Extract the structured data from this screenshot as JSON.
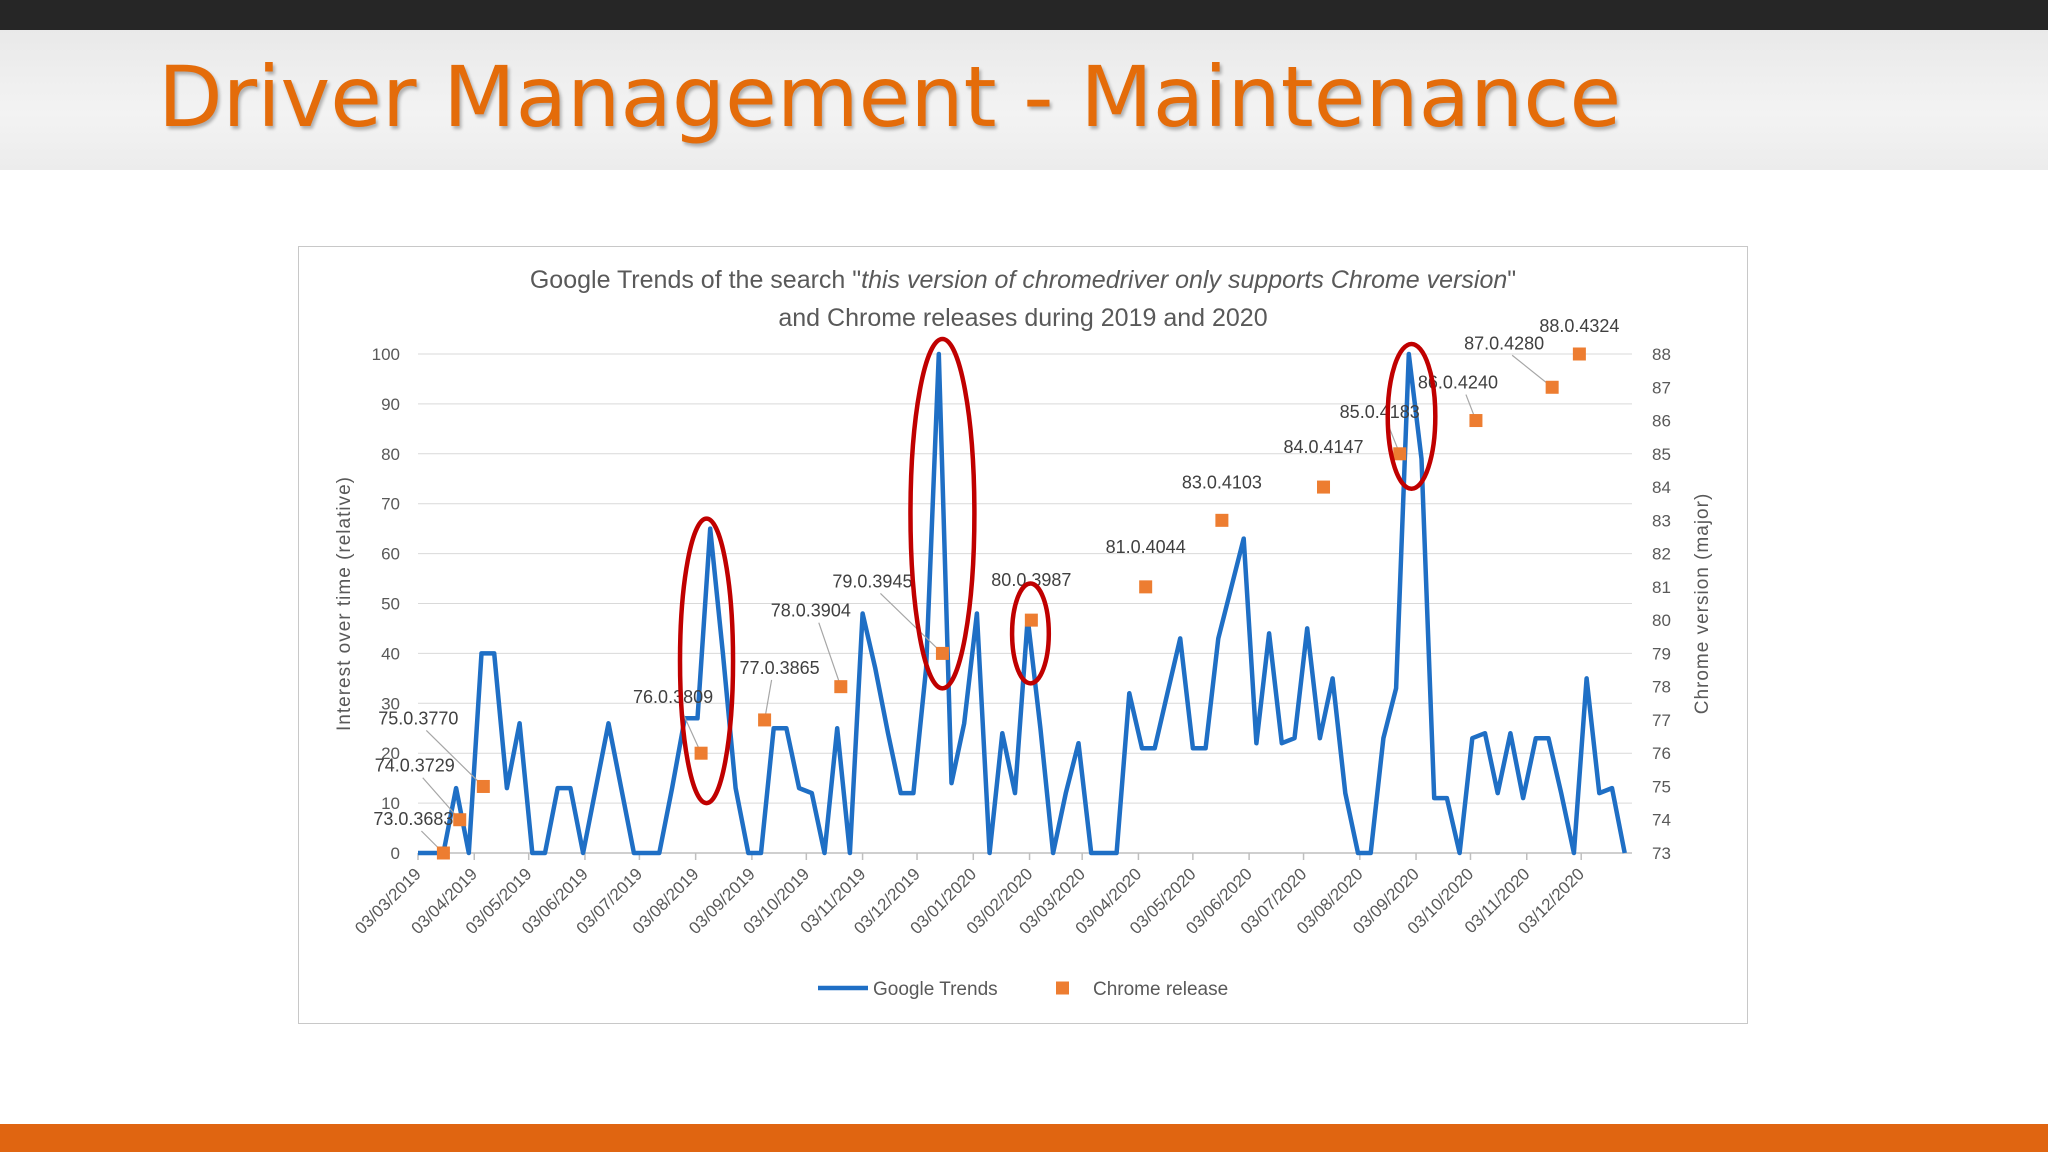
{
  "slide": {
    "title": "Driver Management - Maintenance"
  },
  "colors": {
    "accent": "#e46c0a",
    "trends": "#1f6fc5",
    "releases": "#ed7d31",
    "highlight": "#c00000"
  },
  "chart_data": {
    "type": "line",
    "title": "Google Trends of the search \"this version of chromedriver only supports Chrome version\" and Chrome releases during 2019 and 2020",
    "title_lines": [
      [
        {
          "text": "Google Trends of the search \"",
          "italic": false
        },
        {
          "text": "this version of chromedriver only supports Chrome version",
          "italic": true
        },
        {
          "text": "\"",
          "italic": false
        }
      ],
      [
        {
          "text": "and Chrome releases during 2019 and 2020",
          "italic": false
        }
      ]
    ],
    "ylabel": "Interest over time (relative)",
    "y2label": "Chrome version (major)",
    "ylim": [
      0,
      100
    ],
    "yticks": [
      0,
      10,
      20,
      30,
      40,
      50,
      60,
      70,
      80,
      90,
      100
    ],
    "y2lim": [
      73,
      88
    ],
    "y2ticks": [
      73,
      74,
      75,
      76,
      77,
      78,
      79,
      80,
      81,
      82,
      83,
      84,
      85,
      86,
      87,
      88
    ],
    "xlim": [
      "2019-03-03",
      "2020-12-31"
    ],
    "xticks": [
      "03/03/2019",
      "03/04/2019",
      "03/05/2019",
      "03/06/2019",
      "03/07/2019",
      "03/08/2019",
      "03/09/2019",
      "03/10/2019",
      "03/11/2019",
      "03/12/2019",
      "03/01/2020",
      "03/02/2020",
      "03/03/2020",
      "03/04/2020",
      "03/05/2020",
      "03/06/2020",
      "03/07/2020",
      "03/08/2020",
      "03/09/2020",
      "03/10/2020",
      "03/11/2020",
      "03/12/2020"
    ],
    "grid": true,
    "legend": "bottom",
    "series": [
      {
        "name": "Google Trends",
        "axis": "left",
        "points": [
          [
            "2019-03-03",
            0
          ],
          [
            "2019-03-10",
            0
          ],
          [
            "2019-03-17",
            0
          ],
          [
            "2019-03-24",
            13
          ],
          [
            "2019-03-31",
            0
          ],
          [
            "2019-04-07",
            40
          ],
          [
            "2019-04-14",
            40
          ],
          [
            "2019-04-21",
            13
          ],
          [
            "2019-04-28",
            26
          ],
          [
            "2019-05-05",
            0
          ],
          [
            "2019-05-12",
            0
          ],
          [
            "2019-05-19",
            13
          ],
          [
            "2019-05-26",
            13
          ],
          [
            "2019-06-02",
            0
          ],
          [
            "2019-06-09",
            13
          ],
          [
            "2019-06-16",
            26
          ],
          [
            "2019-06-23",
            13
          ],
          [
            "2019-06-30",
            0
          ],
          [
            "2019-07-07",
            0
          ],
          [
            "2019-07-14",
            0
          ],
          [
            "2019-07-21",
            13
          ],
          [
            "2019-07-28",
            27
          ],
          [
            "2019-08-04",
            27
          ],
          [
            "2019-08-11",
            65
          ],
          [
            "2019-08-18",
            40
          ],
          [
            "2019-08-25",
            13
          ],
          [
            "2019-09-01",
            0
          ],
          [
            "2019-09-08",
            0
          ],
          [
            "2019-09-15",
            25
          ],
          [
            "2019-09-22",
            25
          ],
          [
            "2019-09-29",
            13
          ],
          [
            "2019-10-06",
            12
          ],
          [
            "2019-10-13",
            0
          ],
          [
            "2019-10-20",
            25
          ],
          [
            "2019-10-27",
            0
          ],
          [
            "2019-11-03",
            48
          ],
          [
            "2019-11-10",
            37
          ],
          [
            "2019-11-17",
            24
          ],
          [
            "2019-11-24",
            12
          ],
          [
            "2019-12-01",
            12
          ],
          [
            "2019-12-08",
            37
          ],
          [
            "2019-12-15",
            100
          ],
          [
            "2019-12-22",
            14
          ],
          [
            "2019-12-29",
            26
          ],
          [
            "2020-01-05",
            48
          ],
          [
            "2020-01-12",
            0
          ],
          [
            "2020-01-19",
            24
          ],
          [
            "2020-01-26",
            12
          ],
          [
            "2020-02-02",
            47
          ],
          [
            "2020-02-09",
            25
          ],
          [
            "2020-02-16",
            0
          ],
          [
            "2020-02-23",
            12
          ],
          [
            "2020-03-01",
            22
          ],
          [
            "2020-03-08",
            0
          ],
          [
            "2020-03-15",
            0
          ],
          [
            "2020-03-22",
            0
          ],
          [
            "2020-03-29",
            32
          ],
          [
            "2020-04-05",
            21
          ],
          [
            "2020-04-12",
            21
          ],
          [
            "2020-04-19",
            32
          ],
          [
            "2020-04-26",
            43
          ],
          [
            "2020-05-03",
            21
          ],
          [
            "2020-05-10",
            21
          ],
          [
            "2020-05-17",
            43
          ],
          [
            "2020-05-24",
            53
          ],
          [
            "2020-05-31",
            63
          ],
          [
            "2020-06-07",
            22
          ],
          [
            "2020-06-14",
            44
          ],
          [
            "2020-06-21",
            22
          ],
          [
            "2020-06-28",
            23
          ],
          [
            "2020-07-05",
            45
          ],
          [
            "2020-07-12",
            23
          ],
          [
            "2020-07-19",
            35
          ],
          [
            "2020-07-26",
            12
          ],
          [
            "2020-08-02",
            0
          ],
          [
            "2020-08-09",
            0
          ],
          [
            "2020-08-16",
            23
          ],
          [
            "2020-08-23",
            33
          ],
          [
            "2020-08-30",
            100
          ],
          [
            "2020-09-06",
            79
          ],
          [
            "2020-09-13",
            11
          ],
          [
            "2020-09-20",
            11
          ],
          [
            "2020-09-27",
            0
          ],
          [
            "2020-10-04",
            23
          ],
          [
            "2020-10-11",
            24
          ],
          [
            "2020-10-18",
            12
          ],
          [
            "2020-10-25",
            24
          ],
          [
            "2020-11-01",
            11
          ],
          [
            "2020-11-08",
            23
          ],
          [
            "2020-11-15",
            23
          ],
          [
            "2020-11-22",
            12
          ],
          [
            "2020-11-29",
            0
          ],
          [
            "2020-12-06",
            35
          ],
          [
            "2020-12-13",
            12
          ],
          [
            "2020-12-20",
            13
          ],
          [
            "2020-12-27",
            0
          ]
        ]
      },
      {
        "name": "Chrome release",
        "axis": "right",
        "marker": "square",
        "points": [
          {
            "date": "2019-03-17",
            "major": 73,
            "label": "73.0.3683"
          },
          {
            "date": "2019-03-26",
            "major": 74,
            "label": "74.0.3729"
          },
          {
            "date": "2019-04-08",
            "major": 75,
            "label": "75.0.3770"
          },
          {
            "date": "2019-08-06",
            "major": 76,
            "label": "76.0.3809"
          },
          {
            "date": "2019-09-10",
            "major": 77,
            "label": "77.0.3865"
          },
          {
            "date": "2019-10-22",
            "major": 78,
            "label": "78.0.3904"
          },
          {
            "date": "2019-12-17",
            "major": 79,
            "label": "79.0.3945"
          },
          {
            "date": "2020-02-04",
            "major": 80,
            "label": "80.0.3987"
          },
          {
            "date": "2020-04-07",
            "major": 81,
            "label": "81.0.4044"
          },
          {
            "date": "2020-05-19",
            "major": 83,
            "label": "83.0.4103"
          },
          {
            "date": "2020-07-14",
            "major": 84,
            "label": "84.0.4147"
          },
          {
            "date": "2020-08-25",
            "major": 85,
            "label": "85.0.4183"
          },
          {
            "date": "2020-10-06",
            "major": 86,
            "label": "86.0.4240"
          },
          {
            "date": "2020-11-17",
            "major": 87,
            "label": "87.0.4280"
          },
          {
            "date": "2020-12-02",
            "major": 88,
            "label": "88.0.4324"
          }
        ]
      }
    ],
    "highlights": [
      {
        "from": "2019-08-01",
        "to": "2019-08-17",
        "ymin": 10,
        "ymax": 67
      },
      {
        "from": "2019-12-06",
        "to": "2019-12-28",
        "ymin": 33,
        "ymax": 103
      },
      {
        "from": "2020-01-31",
        "to": "2020-02-07",
        "ymin": 34,
        "ymax": 54
      },
      {
        "from": "2020-08-25",
        "to": "2020-09-07",
        "ymin": 73,
        "ymax": 102
      }
    ]
  }
}
